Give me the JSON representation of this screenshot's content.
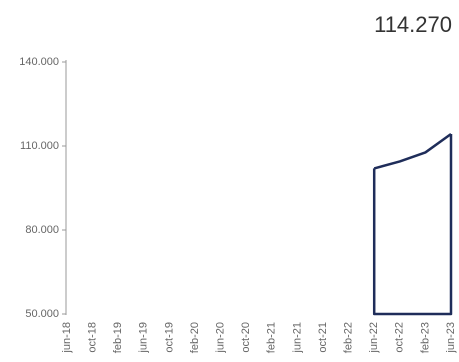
{
  "chart_data": {
    "type": "area",
    "title": "114.270",
    "categories": [
      "jun-18",
      "oct-18",
      "feb-19",
      "jun-19",
      "oct-19",
      "feb-20",
      "jun-20",
      "oct-20",
      "feb-21",
      "jun-21",
      "oct-21",
      "feb-22",
      "jun-22",
      "oct-22",
      "feb-23",
      "jun-23"
    ],
    "values": [
      null,
      null,
      null,
      null,
      null,
      null,
      null,
      null,
      null,
      null,
      null,
      null,
      102000,
      104500,
      107700,
      114270
    ],
    "color": "#1f2d5a",
    "ylim": [
      50000,
      140000
    ],
    "yticks": [
      {
        "value": 50000,
        "label": "50.000"
      },
      {
        "value": 80000,
        "label": "80.000"
      },
      {
        "value": 110000,
        "label": "110.000"
      },
      {
        "value": 140000,
        "label": "140.000"
      }
    ]
  }
}
